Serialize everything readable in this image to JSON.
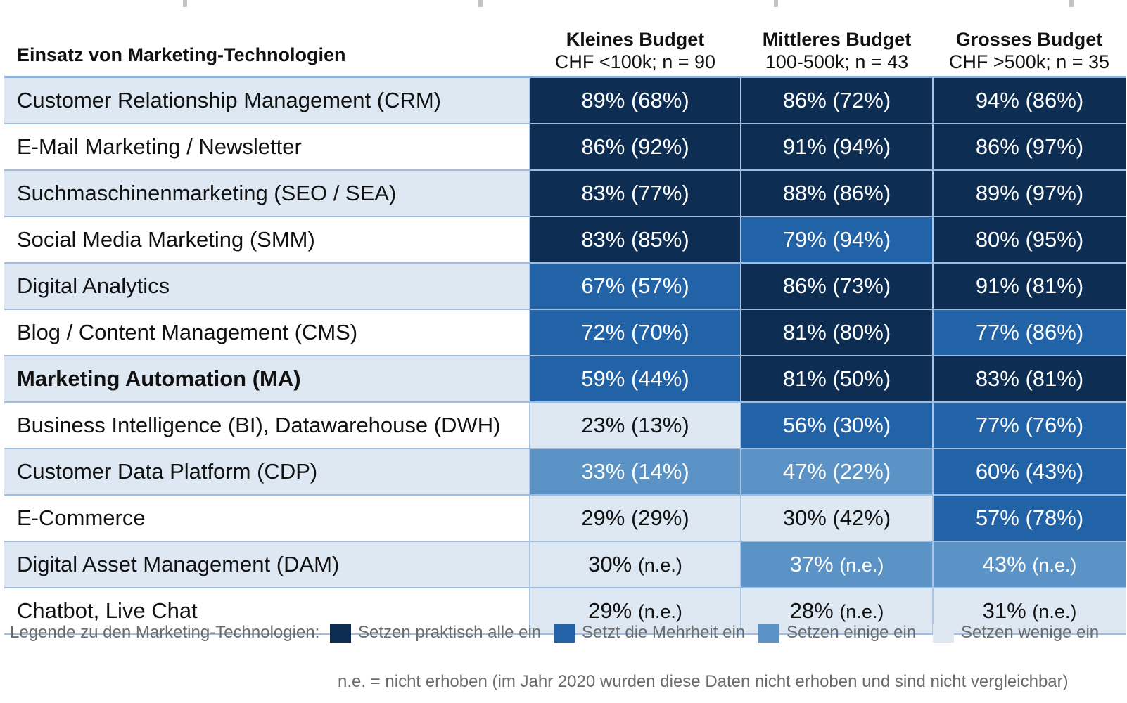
{
  "chart_data": {
    "type": "table",
    "header": {
      "first_column": "Einsatz von Marketing-Technologien",
      "columns": [
        {
          "title": "Kleines Budget",
          "subtitle": "CHF <100k; n = 90"
        },
        {
          "title": "Mittleres Budget",
          "subtitle": "100-500k; n = 43"
        },
        {
          "title": "Grosses Budget",
          "subtitle": "CHF >500k; n = 35"
        }
      ]
    },
    "rows": [
      {
        "label": "Customer Relationship Management (CRM)",
        "bold": false,
        "cells": [
          {
            "value": "89%",
            "prev": "(68%)",
            "level": "praktisch_alle"
          },
          {
            "value": "86%",
            "prev": "(72%)",
            "level": "praktisch_alle"
          },
          {
            "value": "94%",
            "prev": "(86%)",
            "level": "praktisch_alle"
          }
        ]
      },
      {
        "label": "E-Mail Marketing / Newsletter",
        "bold": false,
        "cells": [
          {
            "value": "86%",
            "prev": "(92%)",
            "level": "praktisch_alle"
          },
          {
            "value": "91%",
            "prev": "(94%)",
            "level": "praktisch_alle"
          },
          {
            "value": "86%",
            "prev": "(97%)",
            "level": "praktisch_alle"
          }
        ]
      },
      {
        "label": "Suchmaschinenmarketing (SEO / SEA)",
        "bold": false,
        "cells": [
          {
            "value": "83%",
            "prev": "(77%)",
            "level": "praktisch_alle"
          },
          {
            "value": "88%",
            "prev": "(86%)",
            "level": "praktisch_alle"
          },
          {
            "value": "89%",
            "prev": "(97%)",
            "level": "praktisch_alle"
          }
        ]
      },
      {
        "label": "Social Media Marketing (SMM)",
        "bold": false,
        "cells": [
          {
            "value": "83%",
            "prev": "(85%)",
            "level": "praktisch_alle"
          },
          {
            "value": "79%",
            "prev": "(94%)",
            "level": "mehrheit"
          },
          {
            "value": "80%",
            "prev": "(95%)",
            "level": "praktisch_alle"
          }
        ]
      },
      {
        "label": "Digital Analytics",
        "bold": false,
        "cells": [
          {
            "value": "67%",
            "prev": "(57%)",
            "level": "mehrheit"
          },
          {
            "value": "86%",
            "prev": "(73%)",
            "level": "praktisch_alle"
          },
          {
            "value": "91%",
            "prev": "(81%)",
            "level": "praktisch_alle"
          }
        ]
      },
      {
        "label": "Blog / Content Management (CMS)",
        "bold": false,
        "cells": [
          {
            "value": "72%",
            "prev": "(70%)",
            "level": "mehrheit"
          },
          {
            "value": "81%",
            "prev": "(80%)",
            "level": "praktisch_alle"
          },
          {
            "value": "77%",
            "prev": "(86%)",
            "level": "mehrheit"
          }
        ]
      },
      {
        "label": "Marketing Automation (MA)",
        "bold": true,
        "cells": [
          {
            "value": "59%",
            "prev": "(44%)",
            "level": "mehrheit"
          },
          {
            "value": "81%",
            "prev": "(50%)",
            "level": "praktisch_alle"
          },
          {
            "value": "83%",
            "prev": "(81%)",
            "level": "praktisch_alle"
          }
        ]
      },
      {
        "label": "Business Intelligence (BI), Datawarehouse (DWH)",
        "bold": false,
        "cells": [
          {
            "value": "23%",
            "prev": "(13%)",
            "level": "wenige"
          },
          {
            "value": "56%",
            "prev": "(30%)",
            "level": "mehrheit"
          },
          {
            "value": "77%",
            "prev": "(76%)",
            "level": "mehrheit"
          }
        ]
      },
      {
        "label": "Customer Data Platform (CDP)",
        "bold": false,
        "cells": [
          {
            "value": "33%",
            "prev": "(14%)",
            "level": "einige"
          },
          {
            "value": "47%",
            "prev": "(22%)",
            "level": "einige"
          },
          {
            "value": "60%",
            "prev": "(43%)",
            "level": "mehrheit"
          }
        ]
      },
      {
        "label": "E-Commerce",
        "bold": false,
        "cells": [
          {
            "value": "29%",
            "prev": "(29%)",
            "level": "wenige"
          },
          {
            "value": "30%",
            "prev": "(42%)",
            "level": "wenige"
          },
          {
            "value": "57%",
            "prev": "(78%)",
            "level": "mehrheit"
          }
        ]
      },
      {
        "label": "Digital Asset Management (DAM)",
        "bold": false,
        "cells": [
          {
            "value": "30%",
            "prev": "(n.e.)",
            "level": "wenige"
          },
          {
            "value": "37%",
            "prev": "(n.e.)",
            "level": "einige"
          },
          {
            "value": "43%",
            "prev": "(n.e.)",
            "level": "einige"
          }
        ]
      },
      {
        "label": "Chatbot, Live Chat",
        "bold": false,
        "cells": [
          {
            "value": "29%",
            "prev": "(n.e.)",
            "level": "wenige"
          },
          {
            "value": "28%",
            "prev": "(n.e.)",
            "level": "wenige"
          },
          {
            "value": "31%",
            "prev": "(n.e.)",
            "level": "wenige"
          }
        ]
      }
    ],
    "legend": {
      "intro": "Legende zu den Marketing-Technologien:",
      "items": [
        {
          "key": "praktisch_alle",
          "label": "Setzen praktisch alle ein",
          "color": "#0d2d53"
        },
        {
          "key": "mehrheit",
          "label": "Setzt die Mehrheit ein",
          "color": "#2263a8"
        },
        {
          "key": "einige",
          "label": "Setzen einige ein",
          "color": "#5b93c6"
        },
        {
          "key": "wenige",
          "label": "Setzen wenige ein",
          "color": "#dde8f3"
        }
      ]
    },
    "footnote": "n.e. = nicht erhoben (im Jahr 2020 wurden diese Daten nicht erhoben und sind nicht vergleichbar)"
  },
  "colors": {
    "row_band": "#dde8f3",
    "divider": "#9fbde0",
    "text_dark": "#111111",
    "text_light": "#ffffff",
    "legend_text": "#6b6b6b"
  }
}
